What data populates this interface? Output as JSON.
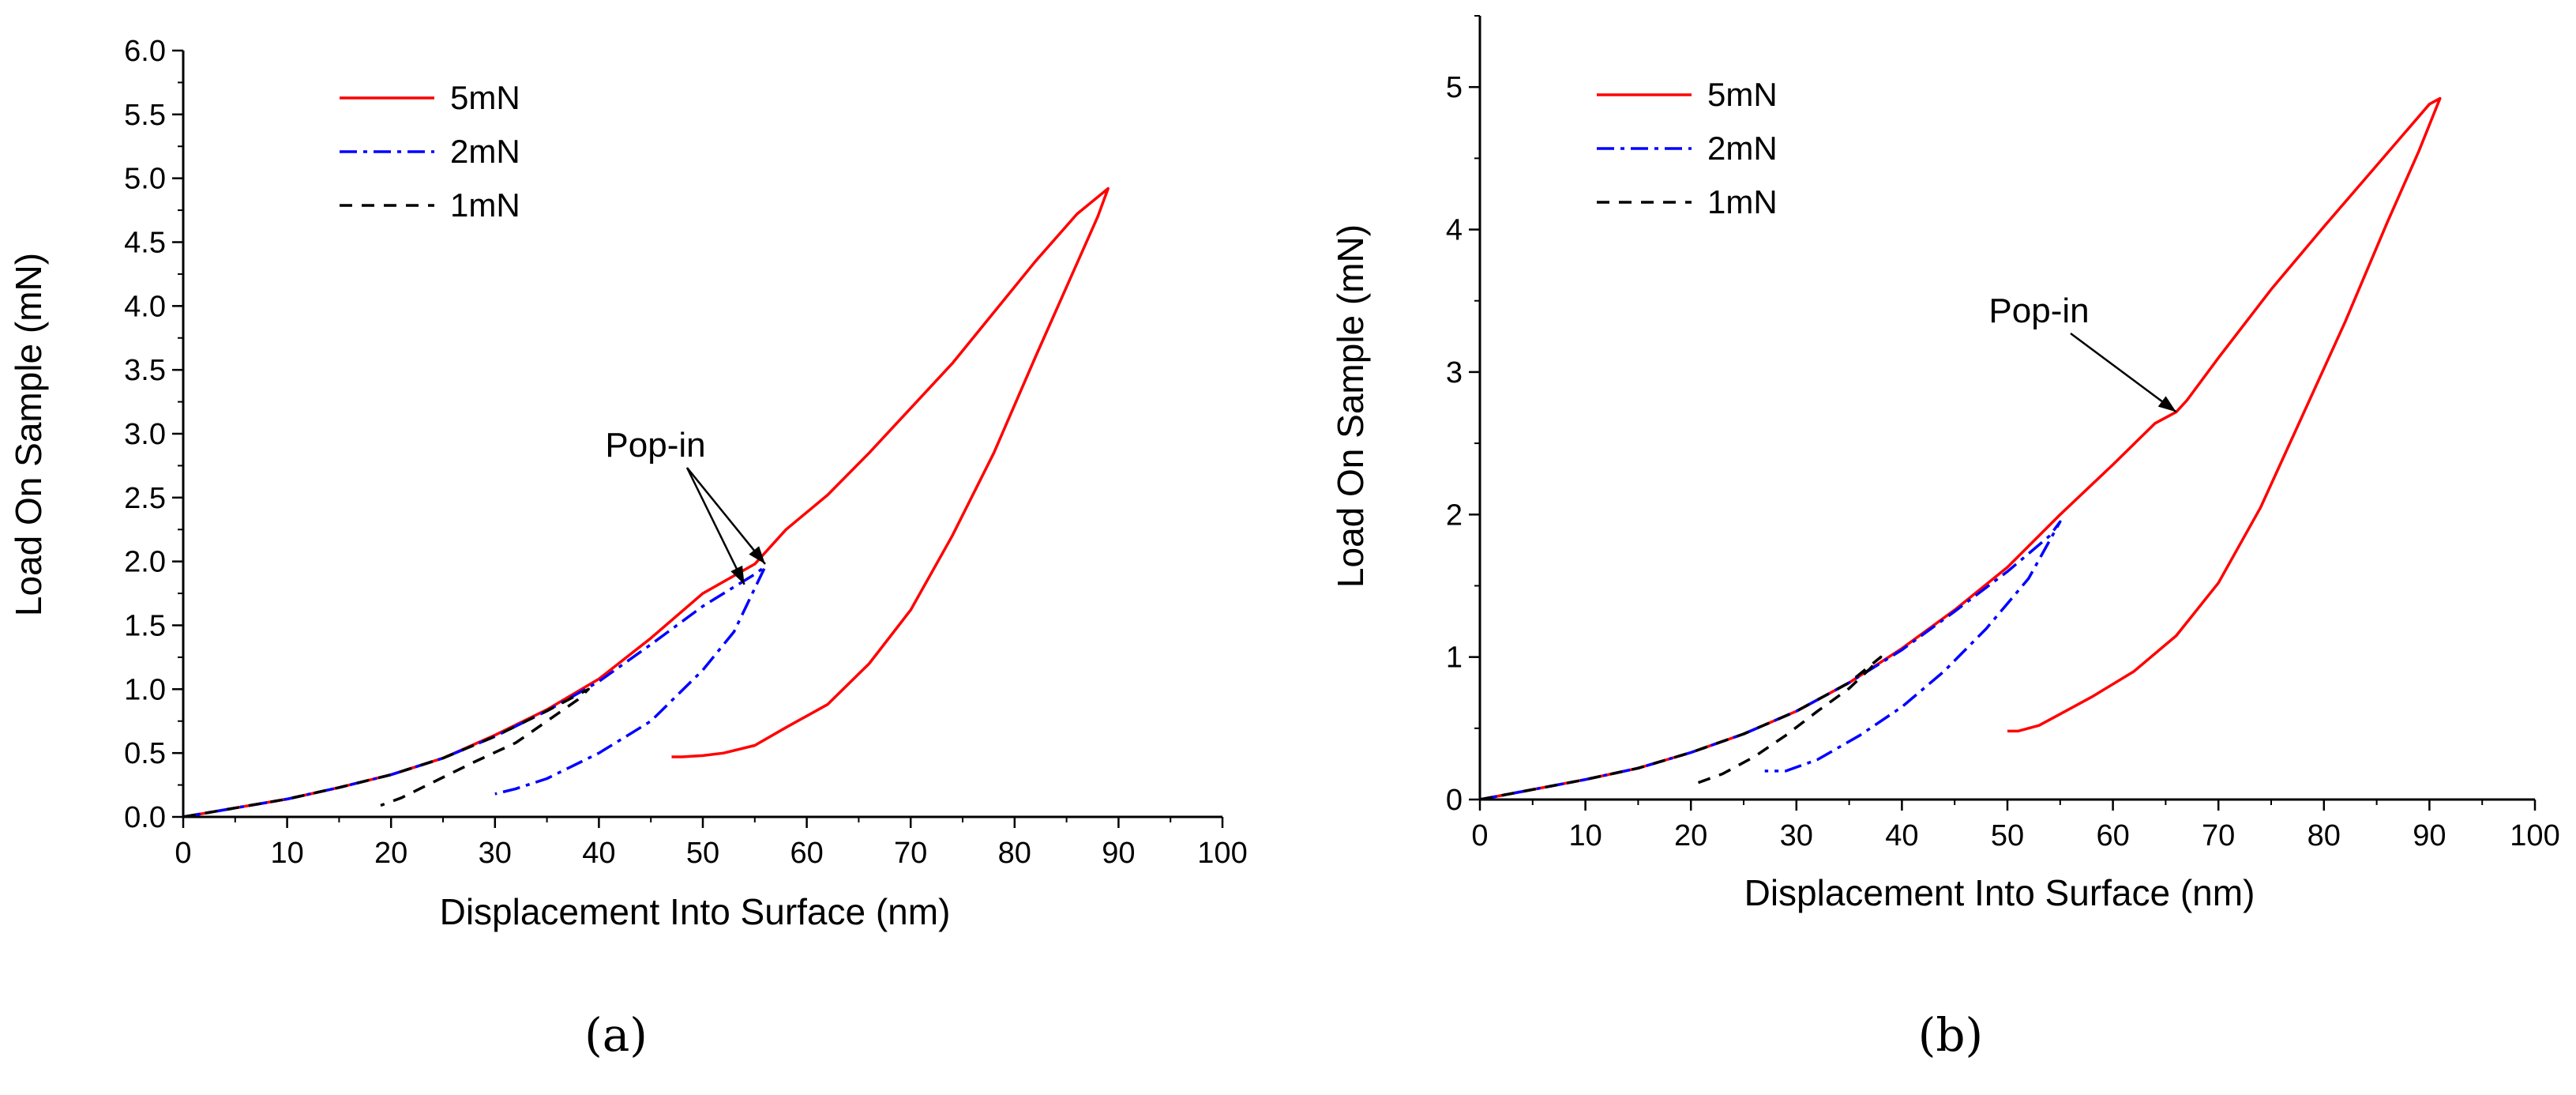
{
  "chart_data": [
    {
      "panel_label": "(a)",
      "type": "line",
      "xlabel": "Displacement Into Surface (nm)",
      "ylabel": "Load On Sample (mN)",
      "xlim": [
        0,
        100
      ],
      "ylim": [
        0,
        6.0
      ],
      "xticks": [
        "0",
        "10",
        "20",
        "30",
        "40",
        "50",
        "60",
        "70",
        "80",
        "90",
        "100"
      ],
      "yticks": [
        "0.0",
        "0.5",
        "1.0",
        "1.5",
        "2.0",
        "2.5",
        "3.0",
        "3.5",
        "4.0",
        "4.5",
        "5.0",
        "5.5",
        "6.0"
      ],
      "xtick_values": [
        0,
        10,
        20,
        30,
        40,
        50,
        60,
        70,
        80,
        90,
        100
      ],
      "ytick_values": [
        0,
        0.5,
        1.0,
        1.5,
        2.0,
        2.5,
        3.0,
        3.5,
        4.0,
        4.5,
        5.0,
        5.5,
        6.0
      ],
      "y_minor_step": 0.25,
      "legend": [
        {
          "label": "5mN",
          "color": "#ff0000",
          "dash": "solid"
        },
        {
          "label": "2mN",
          "color": "#0000ff",
          "dash": "dashdot"
        },
        {
          "label": "1mN",
          "color": "#000000",
          "dash": "dash"
        }
      ],
      "annotation": {
        "text": "Pop-in",
        "arrows_to": [
          [
            56,
            1.98
          ],
          [
            54,
            1.82
          ]
        ]
      },
      "series": [
        {
          "name": "5mN",
          "color": "#ff0000",
          "dash": "solid",
          "x": [
            0,
            5,
            10,
            15,
            20,
            25,
            30,
            35,
            40,
            45,
            50,
            55,
            58,
            62,
            66,
            70,
            74,
            78,
            82,
            86,
            89,
            88,
            85,
            82,
            78,
            74,
            70,
            66,
            62,
            58,
            55,
            52,
            50,
            48,
            47
          ],
          "y": [
            0,
            0.07,
            0.14,
            0.23,
            0.33,
            0.46,
            0.64,
            0.84,
            1.08,
            1.4,
            1.75,
            1.98,
            2.25,
            2.52,
            2.85,
            3.2,
            3.55,
            3.95,
            4.35,
            4.72,
            4.92,
            4.7,
            4.15,
            3.6,
            2.85,
            2.2,
            1.62,
            1.2,
            0.88,
            0.7,
            0.56,
            0.5,
            0.48,
            0.47,
            0.47
          ]
        },
        {
          "name": "2mN",
          "color": "#0000ff",
          "dash": "dashdot",
          "x": [
            0,
            5,
            10,
            15,
            20,
            25,
            30,
            35,
            40,
            45,
            50,
            55,
            56,
            53,
            50,
            45,
            40,
            35,
            32,
            30
          ],
          "y": [
            0,
            0.07,
            0.14,
            0.23,
            0.33,
            0.46,
            0.63,
            0.83,
            1.06,
            1.35,
            1.65,
            1.9,
            1.96,
            1.45,
            1.15,
            0.75,
            0.5,
            0.3,
            0.22,
            0.18
          ]
        },
        {
          "name": "1mN",
          "color": "#000000",
          "dash": "dash",
          "x": [
            0,
            5,
            10,
            15,
            20,
            25,
            30,
            35,
            39,
            38,
            35,
            32,
            28,
            24,
            21,
            19
          ],
          "y": [
            0,
            0.07,
            0.14,
            0.23,
            0.33,
            0.46,
            0.63,
            0.83,
            1.0,
            0.92,
            0.75,
            0.58,
            0.43,
            0.27,
            0.15,
            0.09
          ]
        }
      ]
    },
    {
      "panel_label": "(b)",
      "type": "line",
      "xlabel": "Displacement Into Surface (nm)",
      "ylabel": "Load On Sample (mN)",
      "xlim": [
        0,
        100
      ],
      "ylim": [
        0,
        5.5
      ],
      "xticks": [
        "0",
        "10",
        "20",
        "30",
        "40",
        "50",
        "60",
        "70",
        "80",
        "90",
        "100"
      ],
      "yticks": [
        "0",
        "1",
        "2",
        "3",
        "4",
        "5"
      ],
      "xtick_values": [
        0,
        10,
        20,
        30,
        40,
        50,
        60,
        70,
        80,
        90,
        100
      ],
      "ytick_values": [
        0,
        1,
        2,
        3,
        4,
        5
      ],
      "y_minor_step": 0.5,
      "legend": [
        {
          "label": "5mN",
          "color": "#ff0000",
          "dash": "solid"
        },
        {
          "label": "2mN",
          "color": "#0000ff",
          "dash": "dashdot"
        },
        {
          "label": "1mN",
          "color": "#000000",
          "dash": "dash"
        }
      ],
      "annotation": {
        "text": "Pop-in",
        "arrows_to": [
          [
            66,
            2.72
          ]
        ]
      },
      "series": [
        {
          "name": "5mN",
          "color": "#ff0000",
          "dash": "solid",
          "x": [
            0,
            5,
            10,
            15,
            20,
            25,
            30,
            35,
            40,
            45,
            50,
            55,
            60,
            64,
            66,
            67,
            70,
            75,
            80,
            85,
            90,
            91,
            89,
            86,
            82,
            78,
            74,
            70,
            66,
            62,
            58,
            55,
            53,
            51,
            50
          ],
          "y": [
            0,
            0.07,
            0.14,
            0.22,
            0.33,
            0.46,
            0.62,
            0.82,
            1.06,
            1.33,
            1.63,
            2.0,
            2.35,
            2.64,
            2.72,
            2.8,
            3.1,
            3.58,
            4.02,
            4.45,
            4.88,
            4.92,
            4.55,
            4.05,
            3.35,
            2.7,
            2.05,
            1.52,
            1.15,
            0.9,
            0.72,
            0.6,
            0.52,
            0.48,
            0.48
          ]
        },
        {
          "name": "2mN",
          "color": "#0000ff",
          "dash": "dashdot",
          "x": [
            0,
            5,
            10,
            15,
            20,
            25,
            30,
            35,
            40,
            45,
            50,
            54,
            55,
            52,
            48,
            44,
            40,
            36,
            32,
            29,
            27
          ],
          "y": [
            0,
            0.07,
            0.14,
            0.22,
            0.33,
            0.46,
            0.62,
            0.82,
            1.05,
            1.32,
            1.6,
            1.85,
            1.95,
            1.55,
            1.2,
            0.9,
            0.65,
            0.45,
            0.28,
            0.2,
            0.2
          ]
        },
        {
          "name": "1mN",
          "color": "#000000",
          "dash": "dash",
          "x": [
            0,
            5,
            10,
            15,
            20,
            25,
            30,
            35,
            38,
            37,
            35,
            32,
            29,
            26,
            23,
            20
          ],
          "y": [
            0,
            0.07,
            0.14,
            0.22,
            0.33,
            0.46,
            0.62,
            0.82,
            1.0,
            0.92,
            0.78,
            0.62,
            0.45,
            0.3,
            0.18,
            0.1
          ]
        }
      ]
    }
  ]
}
